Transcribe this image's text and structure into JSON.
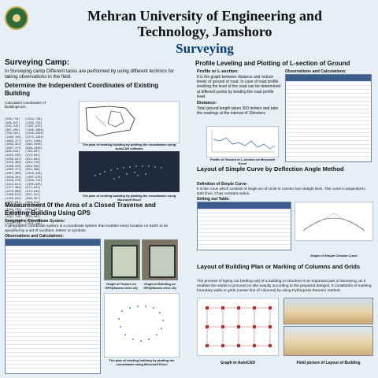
{
  "header": {
    "title_line1": "Mehran University of Engineering and",
    "title_line2": "Technology, Jamshoro",
    "subtitle": "Surveying"
  },
  "left": {
    "camp_heading": "Surveying Camp:",
    "camp_text": "In Surveying camp Different tasks are performed by using different technics for taking observations in the field.",
    "coords_heading": "Determine the Independent Coordinates of Existing Building",
    "coords_intro": "Calculated coordinates of Buildings are,",
    "coords_list": [
      "(539,713)",
      "(468,917)",
      "(545,215)",
      "(667,204)",
      "(763,161)",
      "(1290,145)",
      "(1659,177)",
      "(1656,353)",
      "(1667,471)",
      "(960,514)",
      "(1615,535)",
      "(1556,527)",
      "(1079,394)",
      "(1130,378)",
      "(1099,371)",
      "(1067,369)",
      "(1628,201)",
      "(1458,276)",
      "(1244,611)",
      "(1277,394)",
      "(1078,608)",
      "(1198,614)",
      "(1193,642)",
      "(1159,667)",
      "(1174,730)",
      "(1151,745)",
      "(1108,705)",
      "(1297,719)",
      "(1149,756)",
      "(1197,774)"
    ],
    "coords_list2": [
      "(1154,748)",
      "(1202,753)",
      "(1167,975)",
      "(1195,1064)",
      "(2135,1504)",
      "(2175,1334)",
      "(871,1159)",
      "(990,1009)",
      "(998,1038)",
      "(799,907)",
      "(873,901)",
      "(811,964)",
      "(954,748)",
      "(952,644)",
      "(851,586)",
      "(1013,428)",
      "(1007,479)",
      "(1048,715)",
      "(1050,825)",
      "(974,622)",
      "(872,634)",
      "(867,411)",
      "(960,557)",
      "(898,513)",
      "(771,641)",
      "(856,807)",
      "(988,950)",
      "(949,803)",
      "(1057,523)",
      "(1021,545)"
    ],
    "caption_autocad": "The plan of existing building by plotting the coordinates using AutoCAD software",
    "caption_excel": "The plan of existing building by plotting the coordinates using Microsoft Excel",
    "gps_heading": "Measurement 0f the Area of a Closed Traverse and Existing Building Using GPS",
    "gps_sub": "Geographic Coordinate System:",
    "gps_text": "A geographic coordinate system is a coordinate system that enables every location on Earth to be specified by a set of numbers, letters or symbols.",
    "obs_heading": "Observations and Calculations:",
    "caption_gps_traverse": "Graph of Travers on GPS(Garmin etrex 10)",
    "caption_gps_building": "Graph of Building on GPS(Garmin etrex 10)",
    "caption_gps_excel": "The plan of existing building by plotting the coordinates using Microsoft Excel"
  },
  "right": {
    "profile_heading": "Profile Leveling and Plotting of L-section of Ground",
    "profile_sub": "Profile or L-section:",
    "profile_text": "It is the graph between distance and reduce levels of ground or road. In case of road profile levelling the level of the road can be determined at different points by tending the road profile level.",
    "distance_label": "Distance:",
    "distance_text": "Total ground length taken 300 meters and take the readings at the interval of 10meters",
    "obs_heading": "Observations and Calculations:",
    "caption_profile": "Profile of Ground or L-section on Microsoft Excel",
    "curve_heading": "Layout of Simple Curve by Deflection Angle Method",
    "curve_def_label": "Definition of Simple Curve:",
    "curve_def": "It is the curve which consists of single arc of circle to connect two straight lines. This curve is tangential to both lines. It has constant radius.",
    "setting_table": "Setting out Table:",
    "caption_curve": "Graph of Simple Circular Curve",
    "plan_heading": "Layout of Building Plan or Marking of Columns and Grids",
    "plan_text": "The process of laying out (setting out) of a building or structure is an important part of surveying, as it enables the works to proceed on site exactly according to the prepared designs. It constitutes of marking boundary walls or grids (center line of columns) by using Pythogoras theorem method.",
    "caption_autocad_graph": "Graph in AutoCAD",
    "caption_field": "Field picture of Layout of Building"
  }
}
